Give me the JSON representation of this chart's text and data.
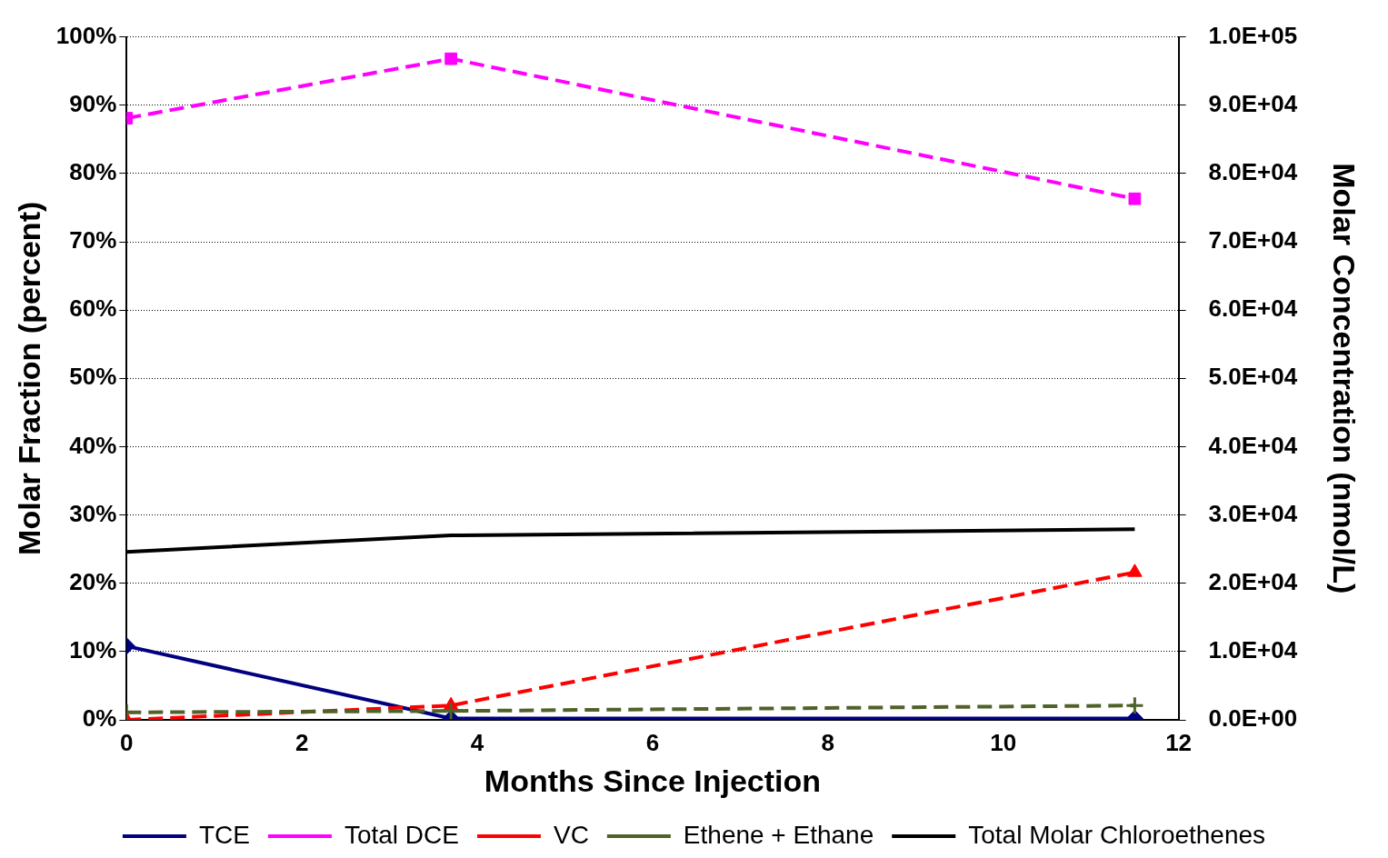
{
  "chart_data": {
    "type": "line",
    "xlabel": "Months Since Injection",
    "ylabel": "Molar Fraction (percent)",
    "y2label": "Molar Concentration (nmol/L)",
    "xlim": [
      0,
      12
    ],
    "xticks": [
      0,
      2,
      4,
      6,
      8,
      10,
      12
    ],
    "ylim": [
      0,
      100
    ],
    "yticks": [
      {
        "value": 0,
        "label": "0%"
      },
      {
        "value": 10,
        "label": "10%"
      },
      {
        "value": 20,
        "label": "20%"
      },
      {
        "value": 30,
        "label": "30%"
      },
      {
        "value": 40,
        "label": "40%"
      },
      {
        "value": 50,
        "label": "50%"
      },
      {
        "value": 60,
        "label": "60%"
      },
      {
        "value": 70,
        "label": "70%"
      },
      {
        "value": 80,
        "label": "80%"
      },
      {
        "value": 90,
        "label": "90%"
      },
      {
        "value": 100,
        "label": "100%"
      }
    ],
    "y2lim": [
      0,
      100000
    ],
    "y2ticks": [
      {
        "value": 0,
        "label": "0.0E+00"
      },
      {
        "value": 10000,
        "label": "1.0E+04"
      },
      {
        "value": 20000,
        "label": "2.0E+04"
      },
      {
        "value": 30000,
        "label": "3.0E+04"
      },
      {
        "value": 40000,
        "label": "4.0E+04"
      },
      {
        "value": 50000,
        "label": "5.0E+04"
      },
      {
        "value": 60000,
        "label": "6.0E+04"
      },
      {
        "value": 70000,
        "label": "7.0E+04"
      },
      {
        "value": 80000,
        "label": "8.0E+04"
      },
      {
        "value": 90000,
        "label": "9.0E+04"
      },
      {
        "value": 100000,
        "label": "1.0E+05"
      }
    ],
    "x": [
      0,
      3.7,
      11.5
    ],
    "series": [
      {
        "name": "TCE",
        "color": "#000080",
        "values": [
          10.8,
          0.2,
          0.2
        ],
        "marker": "diamond",
        "line_style": "solid"
      },
      {
        "name": "Total DCE",
        "color": "#ff00ff",
        "values": [
          88.1,
          96.8,
          76.3
        ],
        "marker": "square",
        "line_style": "dashed"
      },
      {
        "name": "VC",
        "color": "#ff0000",
        "values": [
          0,
          2.1,
          21.6
        ],
        "marker": "triangle",
        "line_style": "dashed"
      },
      {
        "name": "Ethene + Ethane",
        "color": "#4f6228",
        "values": [
          1.1,
          1.3,
          2.1
        ],
        "marker": "cross",
        "line_style": "dashed"
      },
      {
        "name": "Total Molar Chloroethenes",
        "color": "#000000",
        "values": [
          24600,
          27000,
          27900
        ],
        "marker": "none",
        "line_style": "solid",
        "axis": "y2"
      }
    ],
    "grid": "y",
    "legend": "bottom"
  }
}
